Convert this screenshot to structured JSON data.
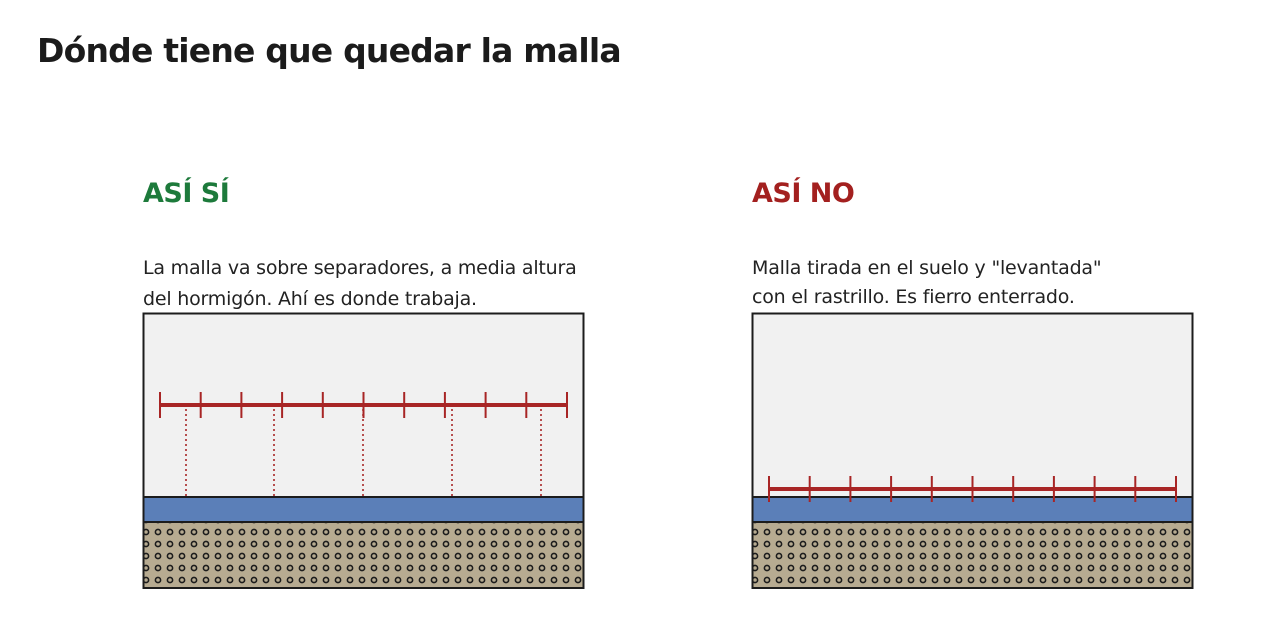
{
  "page": {
    "title": "Dónde tiene que quedar la malla"
  },
  "colors": {
    "good": "#1d7a3b",
    "bad": "#a3201f",
    "concrete": "#f1f1f1",
    "outline": "#1c1c1c",
    "barrier": "#5b7fb8",
    "gravel": "#b7ab91",
    "gravel_dots": "#1c1c1c",
    "mesh": "#a82525"
  },
  "panels": {
    "good": {
      "heading": "ASÍ SÍ",
      "description": [
        "La malla va sobre separadores, a media altura",
        "del hormigón. Ahí es donde trabaja."
      ]
    },
    "bad": {
      "heading": "ASÍ NO",
      "description": [
        "Malla tirada en el suelo y \"levantada\"",
        "con el rastrillo. Es fierro enterrado."
      ]
    }
  }
}
